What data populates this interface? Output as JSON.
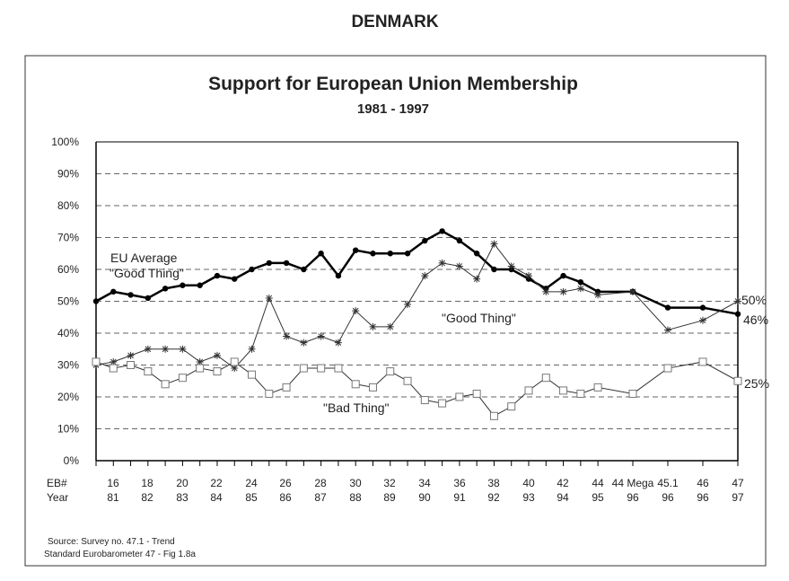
{
  "page_title": "DENMARK",
  "chart_data": {
    "type": "line",
    "title": "Support for European Union Membership",
    "subtitle": "1981 - 1997",
    "ylim": [
      0,
      100
    ],
    "y_ticks": [
      "0%",
      "10%",
      "20%",
      "30%",
      "40%",
      "50%",
      "60%",
      "70%",
      "80%",
      "90%",
      "100%"
    ],
    "grid": "dashed horizontal",
    "x_row_labels": {
      "eb": "EB#",
      "year": "Year"
    },
    "x_tick_labels": [
      {
        "eb": "16",
        "year": "81"
      },
      {
        "eb": "18",
        "year": "82"
      },
      {
        "eb": "20",
        "year": "83"
      },
      {
        "eb": "22",
        "year": "84"
      },
      {
        "eb": "24",
        "year": "85"
      },
      {
        "eb": "26",
        "year": "86"
      },
      {
        "eb": "28",
        "year": "87"
      },
      {
        "eb": "30",
        "year": "88"
      },
      {
        "eb": "32",
        "year": "89"
      },
      {
        "eb": "34",
        "year": "90"
      },
      {
        "eb": "36",
        "year": "91"
      },
      {
        "eb": "38",
        "year": "92"
      },
      {
        "eb": "40",
        "year": "93"
      },
      {
        "eb": "42",
        "year": "94"
      },
      {
        "eb": "44",
        "year": "95"
      },
      {
        "eb": "44 Mega",
        "year": "96"
      },
      {
        "eb": "45.1",
        "year": "96"
      },
      {
        "eb": "46",
        "year": "96"
      },
      {
        "eb": "47",
        "year": "97"
      }
    ],
    "x": [
      "15",
      "16",
      "17",
      "18",
      "19",
      "20",
      "21",
      "22",
      "23",
      "24",
      "25",
      "26",
      "27",
      "28",
      "29",
      "30",
      "31",
      "32",
      "33",
      "34",
      "35",
      "36",
      "37",
      "38",
      "39",
      "40",
      "41",
      "42",
      "43",
      "44",
      "44 Mega",
      "45.1",
      "46",
      "47"
    ],
    "series": [
      {
        "name": "EU Average \"Good Thing\"",
        "marker": "dot",
        "values": [
          50,
          53,
          52,
          51,
          54,
          55,
          55,
          58,
          57,
          60,
          62,
          62,
          60,
          65,
          58,
          66,
          65,
          65,
          65,
          69,
          72,
          69,
          65,
          60,
          60,
          57,
          54,
          58,
          56,
          53,
          53,
          48,
          48,
          46
        ]
      },
      {
        "name": "\"Good Thing\"",
        "marker": "star",
        "values": [
          30,
          31,
          33,
          35,
          35,
          35,
          31,
          33,
          29,
          35,
          51,
          39,
          37,
          39,
          37,
          47,
          42,
          42,
          49,
          58,
          62,
          61,
          57,
          68,
          61,
          58,
          53,
          53,
          54,
          52,
          53,
          41,
          44,
          50
        ]
      },
      {
        "name": "\"Bad Thing\"",
        "marker": "square",
        "values": [
          31,
          29,
          30,
          28,
          24,
          26,
          29,
          28,
          31,
          27,
          21,
          23,
          29,
          29,
          29,
          24,
          23,
          28,
          25,
          19,
          18,
          20,
          21,
          14,
          17,
          22,
          26,
          22,
          21,
          23,
          21,
          29,
          31,
          25
        ]
      }
    ],
    "annotations": {
      "eu_line1": "EU Average",
      "eu_line2": "\"Good Thing\"",
      "good": "\"Good Thing\"",
      "bad": "\"Bad Thing\"",
      "end_good": "50%",
      "end_eu": "46%",
      "end_bad": "25%"
    }
  },
  "source": {
    "line1": "Source:  Survey no.  47.1 - Trend",
    "line2": "Standard Eurobarometer 47 - Fig 1.8a"
  }
}
